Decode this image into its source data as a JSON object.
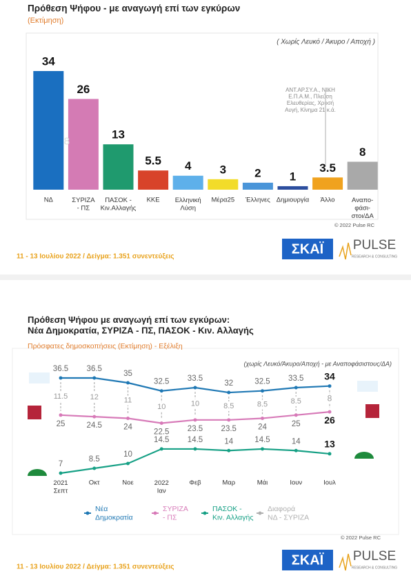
{
  "chart_data": [
    {
      "type": "bar",
      "title": "Πρόθεση Ψήφου - με αναγωγή επί των εγκύρων",
      "subtitle": "(Εκτίμηση)",
      "note": "( Χωρίς Λευκό / Άκυρο / Αποχή )",
      "annotation": "ΑΝΤ.ΑΡ.ΣΥ.Α., ΝΙΚΗ\nΕ.Π.Α.Μ., Πλεύση\nΕλευθερίας, Χρυσή\nΑυγή, Κίνημα 21  κ.ά.",
      "categories": [
        "ΝΔ",
        "ΣΥΡΙΖΑ\n- ΠΣ",
        "ΠΑΣΟΚ -\nΚιν.Αλλαγής",
        "ΚΚΕ",
        "Ελληνική\nΛύση",
        "Μέρα25",
        "Έλληνες",
        "Δημιουργία",
        "Άλλο",
        "Αναπο-\nφάσι-\nστοι/ΔΑ"
      ],
      "values": [
        34,
        26,
        13,
        5.5,
        4,
        3,
        2,
        1,
        3.5,
        8
      ],
      "colors": [
        "#1a6fc0",
        "#d47bb4",
        "#1f9a6e",
        "#d8432a",
        "#5eb0ea",
        "#f2dc2a",
        "#4a95d9",
        "#2c4e9e",
        "#f0a21e",
        "#a9a9a9"
      ],
      "difference": 8,
      "copyright": "© 2022 Pulse RC",
      "footer": "11 - 13 Ιουλίου  2022  /  Δείγμα:  1.351 συνεντεύξεις"
    },
    {
      "type": "line",
      "title": "Πρόθεση Ψήφου με αναγωγή επί των εγκύρων:\nΝέα Δημοκρατία, ΣΥΡΙΖΑ - ΠΣ, ΠΑΣΟΚ - Κιν. Αλλαγής",
      "subtitle": "Πρόσφατες δημοσκοπήσεις (Εκτίμηση) - Εξέλιξη",
      "note": "(χωρίς Λευκό/Άκυρο/Αποχή - με Αναποφάσιστους/ΔΑ)",
      "categories": [
        "2021\nΣεπτ",
        "Οκτ",
        "Νοε",
        "2022\nΙαν",
        "Φεβ",
        "Μαρ",
        "Μάι",
        "Ιουν",
        "Ιουλ"
      ],
      "series": [
        {
          "name": "Νέα\nΔημοκρατία",
          "color": "#1f78b4",
          "values": [
            36.5,
            36.5,
            35,
            32.5,
            33.5,
            32,
            32.5,
            33.5,
            34
          ]
        },
        {
          "name": "ΣΥΡΙΖΑ\n- ΠΣ",
          "color": "#d77ab8",
          "values": [
            25,
            24.5,
            24,
            22.5,
            23.5,
            23.5,
            24,
            25,
            26
          ]
        },
        {
          "name": "ΠΑΣΟΚ -\nΚιν. Αλλαγής",
          "color": "#16a085",
          "values": [
            7,
            8.5,
            10,
            14.5,
            14.5,
            14,
            14.5,
            14,
            13
          ]
        },
        {
          "name": "Διαφορά\nΝΔ - ΣΥΡΙΖΑ",
          "color": "#b0b0b0",
          "values": [
            11.5,
            12,
            11,
            10,
            10,
            8.5,
            8.5,
            8.5,
            8
          ],
          "draw": "difference"
        }
      ],
      "copyright": "© 2022 Pulse RC",
      "footer": "11 - 13 Ιουλίου  2022  /  Δείγμα:  1.351 συνεντεύξεις"
    }
  ],
  "logos": {
    "channel": "ΣΚΑΪ",
    "pollster": "PULSE",
    "pollster_tagline": "RESEARCH & CONSULTING"
  }
}
